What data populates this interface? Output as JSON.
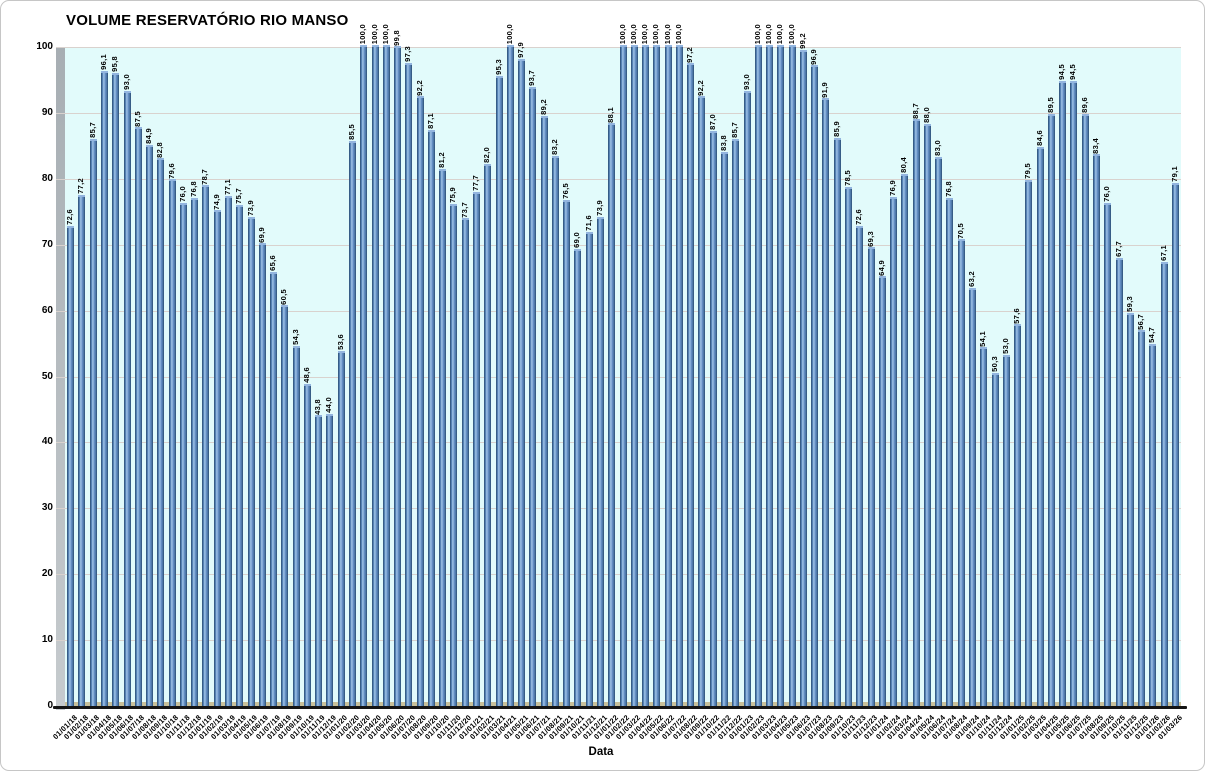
{
  "chart_data": {
    "type": "bar",
    "title": "VOLUME RESERVATÓRIO RIO MANSO",
    "xlabel": "Data",
    "ylabel": "",
    "ylim": [
      0,
      100
    ],
    "yticks": [
      0,
      10,
      20,
      30,
      40,
      50,
      60,
      70,
      80,
      90,
      100
    ],
    "grid": true,
    "legend": false,
    "colors": {
      "bar_fill": "#4F81BD",
      "bar_edge": "#27496F",
      "bar_highlight": "#A4C7E8",
      "bar_cap": "#93B5DF",
      "plot_background": "#E2FBFB",
      "gridline": "#D9D2CE",
      "wall_top": "#A7AEB3",
      "wall_bottom": "#C6CBCE",
      "floor": "#C9C19A",
      "axis_line": "#141414"
    },
    "categories": [
      "01/01/18",
      "01/02/18",
      "01/03/18",
      "01/04/18",
      "01/05/18",
      "01/06/18",
      "01/07/18",
      "01/08/18",
      "01/09/18",
      "01/10/18",
      "01/11/18",
      "01/12/18",
      "01/01/19",
      "01/02/19",
      "01/03/19",
      "01/04/19",
      "01/05/19",
      "01/06/19",
      "01/07/19",
      "01/08/19",
      "01/09/19",
      "01/10/19",
      "01/11/19",
      "01/12/19",
      "01/01/20",
      "01/02/20",
      "01/03/20",
      "01/04/20",
      "01/05/20",
      "01/06/20",
      "01/07/20",
      "01/08/20",
      "01/09/20",
      "01/10/20",
      "01/11/20",
      "01/12/20",
      "01/01/21",
      "01/02/21",
      "01/03/21",
      "01/04/21",
      "01/05/21",
      "01/06/21",
      "01/07/21",
      "01/08/21",
      "01/09/21",
      "01/10/21",
      "01/11/21",
      "01/12/21",
      "01/01/22",
      "01/02/22",
      "01/03/22",
      "01/04/22",
      "01/05/22",
      "01/06/22",
      "01/07/22",
      "01/08/22",
      "01/09/22",
      "01/10/22",
      "01/11/22",
      "01/12/22",
      "01/01/23",
      "01/02/23",
      "01/03/23",
      "01/04/23",
      "01/05/23",
      "01/06/23",
      "01/07/23",
      "01/08/23",
      "01/09/23",
      "01/10/23",
      "01/11/23",
      "01/12/23",
      "01/01/24",
      "01/02/24",
      "01/03/24",
      "01/04/24",
      "01/05/24",
      "01/06/24",
      "01/07/24",
      "01/08/24",
      "01/09/24",
      "01/10/24",
      "01/11/24",
      "01/12/24",
      "01/01/25",
      "01/02/25",
      "01/03/25",
      "01/04/25",
      "01/05/25",
      "01/06/25",
      "01/07/25",
      "01/08/25",
      "01/09/25",
      "01/10/25",
      "01/11/25",
      "01/12/25",
      "01/01/26",
      "01/02/26",
      "01/03/26"
    ],
    "values": [
      72.6,
      77.2,
      85.7,
      96.1,
      95.8,
      93.0,
      87.5,
      84.9,
      82.8,
      79.6,
      76.0,
      76.8,
      78.7,
      74.9,
      77.1,
      75.7,
      73.9,
      69.9,
      65.6,
      60.5,
      54.3,
      48.6,
      43.8,
      44.0,
      53.6,
      85.5,
      100.0,
      100.0,
      100.0,
      99.8,
      97.3,
      92.2,
      87.1,
      81.2,
      75.9,
      73.7,
      77.7,
      82.0,
      95.3,
      100.0,
      97.9,
      93.7,
      89.2,
      83.2,
      76.5,
      69.0,
      71.6,
      73.9,
      88.1,
      100.0,
      100.0,
      100.0,
      100.0,
      100.0,
      100.0,
      97.2,
      92.2,
      87.0,
      83.8,
      85.7,
      93.0,
      100.0,
      100.0,
      100.0,
      100.0,
      99.2,
      96.9,
      91.9,
      85.9,
      78.5,
      72.6,
      69.3,
      64.9,
      76.9,
      80.4,
      88.7,
      88.0,
      83.0,
      76.8,
      70.5,
      63.2,
      54.1,
      50.3,
      53.0,
      57.6,
      79.5,
      84.6,
      89.5,
      94.5,
      94.5,
      89.6,
      83.4,
      76.0,
      67.7,
      59.3,
      56.7,
      54.7,
      67.1,
      79.1
    ],
    "labels": [
      "72,6",
      "77,2",
      "85,7",
      "96,1",
      "95,8",
      "93,0",
      "87,5",
      "84,9",
      "82,8",
      "79,6",
      "76,0",
      "76,8",
      "78,7",
      "74,9",
      "77,1",
      "75,7",
      "73,9",
      "69,9",
      "65,6",
      "60,5",
      "54,3",
      "48,6",
      "43,8",
      "44,0",
      "53,6",
      "85,5",
      "100,0",
      "100,0",
      "100,0",
      "99,8",
      "97,3",
      "92,2",
      "87,1",
      "81,2",
      "75,9",
      "73,7",
      "77,7",
      "82,0",
      "95,3",
      "100,0",
      "97,9",
      "93,7",
      "89,2",
      "83,2",
      "76,5",
      "69,0",
      "71,6",
      "73,9",
      "88,1",
      "100,0",
      "100,0",
      "100,0",
      "100,0",
      "100,0",
      "100,0",
      "97,2",
      "92,2",
      "87,0",
      "83,8",
      "85,7",
      "93,0",
      "100,0",
      "100,0",
      "100,0",
      "100,0",
      "99,2",
      "96,9",
      "91,9",
      "85,9",
      "78,5",
      "72,6",
      "69,3",
      "64,9",
      "76,9",
      "80,4",
      "88,7",
      "88,0",
      "83,0",
      "76,8",
      "70,5",
      "63,2",
      "54,1",
      "50,3",
      "53,0",
      "57,6",
      "79,5",
      "84,6",
      "89,5",
      "94,5",
      "94,5",
      "89,6",
      "83,4",
      "76,0",
      "67,7",
      "59,3",
      "56,7",
      "54,7",
      "67,1",
      "79,1"
    ]
  }
}
